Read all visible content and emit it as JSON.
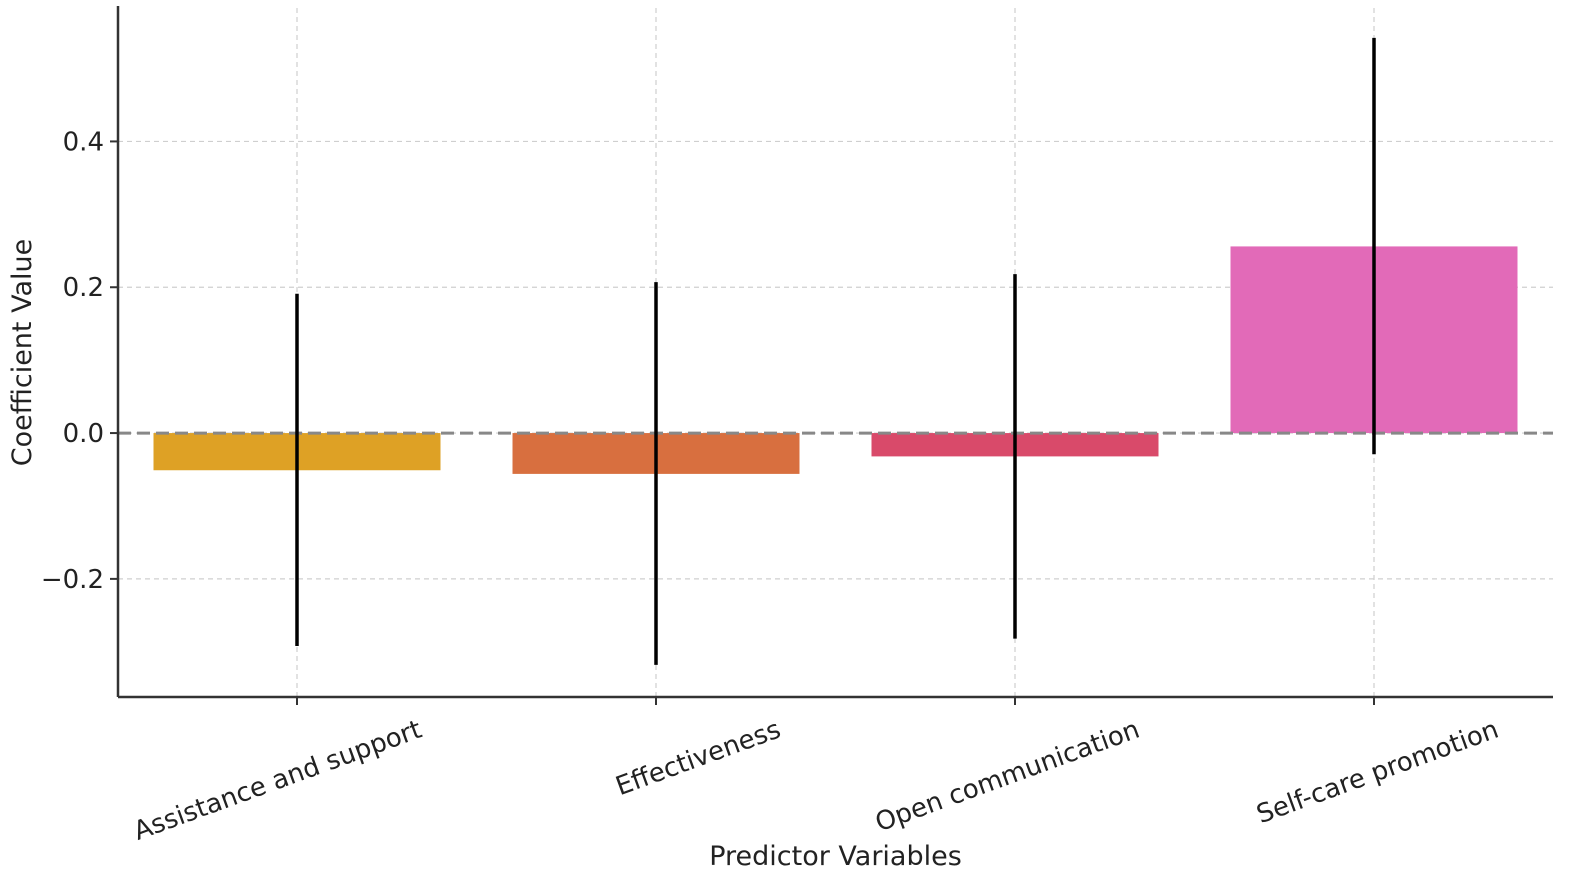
{
  "chart_data": {
    "type": "bar",
    "title": "",
    "xlabel": "Predictor Variables",
    "ylabel": "Coefficient Value",
    "categories": [
      "Assistance and support",
      "Effectiveness",
      "Open communication",
      "Self-care promotion"
    ],
    "values": [
      -0.051,
      -0.056,
      -0.032,
      0.256
    ],
    "error_low": [
      -0.292,
      -0.318,
      -0.282,
      -0.029
    ],
    "error_high": [
      0.191,
      0.207,
      0.218,
      0.542
    ],
    "colors": [
      "#dea125",
      "#d86f3f",
      "#d94a6a",
      "#e26ab8"
    ],
    "ylim": [
      -0.362,
      0.583
    ],
    "yticks": [
      -0.2,
      0.0,
      0.2,
      0.4
    ],
    "ytick_labels": [
      "−0.2",
      "0.0",
      "0.2",
      "0.4"
    ],
    "grid": true,
    "zero_line": "dashed",
    "legend": "none"
  }
}
